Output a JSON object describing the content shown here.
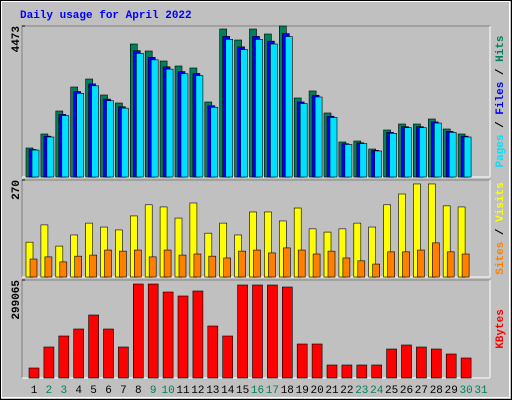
{
  "chart_data": [
    {
      "type": "bar",
      "title": "Daily usage for April 2022",
      "ylim": [
        0,
        4473
      ],
      "yticks": [
        4473
      ],
      "legend_separator": " / ",
      "series": [
        {
          "name": "Pages",
          "color": "#00e0ff",
          "values": [
            799,
            1185,
            1818,
            2479,
            2700,
            2259,
            2039,
            3664,
            3471,
            3195,
            3058,
            3003,
            2066,
            4077,
            3774,
            4077,
            3939,
            4160,
            2176,
            2370,
            1763,
            964,
            991,
            771,
            1295,
            1460,
            1460,
            1598,
            1322,
            1185,
            null
          ]
        },
        {
          "name": "Files",
          "color": "#0000ff",
          "values": [
            816,
            1210,
            1857,
            2533,
            2758,
            2308,
            2082,
            3743,
            3545,
            3264,
            3124,
            3068,
            2111,
            4165,
            3855,
            4165,
            4024,
            4249,
            2223,
            2421,
            1801,
            985,
            1013,
            788,
            1322,
            1492,
            1492,
            1632,
            1351,
            1210,
            null
          ]
        },
        {
          "name": "Hits",
          "color": "#00805c",
          "values": [
            859,
            1274,
            1955,
            2666,
            2903,
            2429,
            2192,
            3940,
            3732,
            3436,
            3288,
            3229,
            2222,
            4384,
            4058,
            4384,
            4236,
            4473,
            2340,
            2548,
            1896,
            1037,
            1066,
            829,
            1392,
            1570,
            1570,
            1718,
            1422,
            1274,
            null
          ]
        }
      ]
    },
    {
      "type": "bar",
      "ylim": [
        0,
        270
      ],
      "yticks": [
        270
      ],
      "legend_separator": " / ",
      "series": [
        {
          "name": "Sites",
          "color": "#ff8000",
          "values": [
            50,
            56,
            42,
            58,
            61,
            75,
            72,
            75,
            56,
            75,
            61,
            64,
            58,
            53,
            72,
            75,
            67,
            81,
            75,
            64,
            72,
            53,
            45,
            36,
            70,
            70,
            75,
            95,
            70,
            64,
            null
          ]
        },
        {
          "name": "Visits",
          "color": "#ffff00",
          "values": [
            97,
            145,
            86,
            117,
            150,
            139,
            131,
            170,
            201,
            195,
            164,
            206,
            122,
            150,
            117,
            181,
            181,
            156,
            192,
            134,
            125,
            134,
            150,
            139,
            201,
            231,
            259,
            259,
            198,
            195,
            null
          ]
        }
      ]
    },
    {
      "type": "bar",
      "ylim": [
        0,
        299065
      ],
      "yticks": [
        299065
      ],
      "categories": [
        "1",
        "2",
        "3",
        "4",
        "5",
        "6",
        "7",
        "8",
        "9",
        "10",
        "11",
        "12",
        "13",
        "14",
        "15",
        "16",
        "17",
        "18",
        "19",
        "20",
        "21",
        "22",
        "23",
        "24",
        "25",
        "26",
        "27",
        "28",
        "29",
        "30",
        "31"
      ],
      "category_colors": [
        "#000000",
        "#00805c",
        "#00805c",
        "#000000",
        "#000000",
        "#000000",
        "#000000",
        "#000000",
        "#00805c",
        "#00805c",
        "#000000",
        "#000000",
        "#000000",
        "#000000",
        "#000000",
        "#00805c",
        "#00805c",
        "#000000",
        "#000000",
        "#000000",
        "#000000",
        "#000000",
        "#00805c",
        "#00805c",
        "#000000",
        "#000000",
        "#000000",
        "#000000",
        "#000000",
        "#00805c",
        "#00805c"
      ],
      "series": [
        {
          "name": "KBytes",
          "color": "#ff0000",
          "values": [
            30516,
            94600,
            128170,
            149530,
            192250,
            149530,
            94600,
            286860,
            286860,
            262450,
            250240,
            265500,
            158690,
            128170,
            283810,
            283810,
            283810,
            277710,
            103760,
            103760,
            39670,
            39670,
            39670,
            39670,
            88500,
            100710,
            94600,
            88500,
            73240,
            61030,
            null
          ]
        }
      ]
    }
  ]
}
